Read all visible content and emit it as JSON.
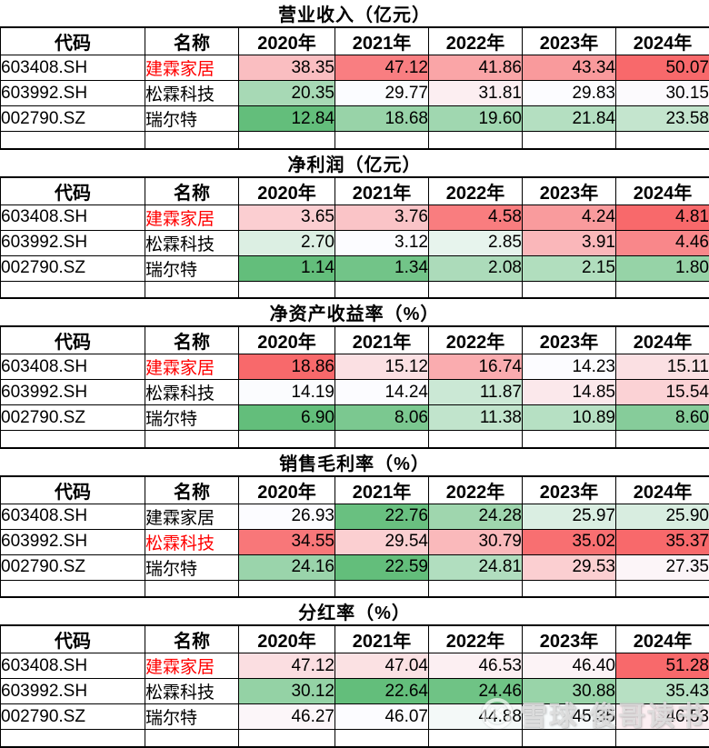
{
  "columns": [
    "代码",
    "名称",
    "2020年",
    "2021年",
    "2022年",
    "2023年",
    "2024年"
  ],
  "heatmap": {
    "min_color": "#63BE7B",
    "mid_color": "#FCFCFF",
    "max_color": "#F8696B",
    "midpoint": "50th percentile per table"
  },
  "name_highlight_color": "#FF0000",
  "border_color": "#000000",
  "chart_data": [
    {
      "type": "table",
      "title": "营业收入（亿元）",
      "rows": [
        {
          "code": "603408.SH",
          "name": "建霖家居",
          "highlight": true,
          "values": [
            "38.35",
            "47.12",
            "41.86",
            "43.34",
            "50.07"
          ]
        },
        {
          "code": "603992.SH",
          "name": "松霖科技",
          "highlight": false,
          "values": [
            "20.35",
            "29.77",
            "31.81",
            "29.83",
            "30.15"
          ]
        },
        {
          "code": "002790.SZ",
          "name": "瑞尔特",
          "highlight": false,
          "values": [
            "12.84",
            "18.68",
            "19.60",
            "21.84",
            "23.58"
          ]
        }
      ]
    },
    {
      "type": "table",
      "title": "净利润（亿元）",
      "rows": [
        {
          "code": "603408.SH",
          "name": "建霖家居",
          "highlight": true,
          "values": [
            "3.65",
            "3.76",
            "4.58",
            "4.24",
            "4.81"
          ]
        },
        {
          "code": "603992.SH",
          "name": "松霖科技",
          "highlight": false,
          "values": [
            "2.70",
            "3.12",
            "2.85",
            "3.91",
            "4.46"
          ]
        },
        {
          "code": "002790.SZ",
          "name": "瑞尔特",
          "highlight": false,
          "values": [
            "1.14",
            "1.34",
            "2.08",
            "2.15",
            "1.80"
          ]
        }
      ]
    },
    {
      "type": "table",
      "title": "净资产收益率（%）",
      "rows": [
        {
          "code": "603408.SH",
          "name": "建霖家居",
          "highlight": true,
          "values": [
            "18.86",
            "15.12",
            "16.74",
            "14.23",
            "15.11"
          ]
        },
        {
          "code": "603992.SH",
          "name": "松霖科技",
          "highlight": false,
          "values": [
            "14.19",
            "14.24",
            "11.87",
            "14.85",
            "15.54"
          ]
        },
        {
          "code": "002790.SZ",
          "name": "瑞尔特",
          "highlight": false,
          "values": [
            "6.90",
            "8.06",
            "11.38",
            "10.89",
            "8.60"
          ]
        }
      ]
    },
    {
      "type": "table",
      "title": "销售毛利率（%）",
      "rows": [
        {
          "code": "603408.SH",
          "name": "建霖家居",
          "highlight": false,
          "values": [
            "26.93",
            "22.76",
            "24.28",
            "25.97",
            "25.90"
          ]
        },
        {
          "code": "603992.SH",
          "name": "松霖科技",
          "highlight": true,
          "values": [
            "34.55",
            "29.54",
            "30.79",
            "35.02",
            "35.37"
          ]
        },
        {
          "code": "002790.SZ",
          "name": "瑞尔特",
          "highlight": false,
          "values": [
            "24.16",
            "22.59",
            "24.81",
            "29.53",
            "27.35"
          ]
        }
      ]
    },
    {
      "type": "table",
      "title": "分红率（%）",
      "rows": [
        {
          "code": "603408.SH",
          "name": "建霖家居",
          "highlight": true,
          "values": [
            "47.12",
            "47.04",
            "46.53",
            "46.40",
            "51.28"
          ]
        },
        {
          "code": "603992.SH",
          "name": "松霖科技",
          "highlight": false,
          "values": [
            "30.12",
            "22.64",
            "24.46",
            "30.88",
            "35.43"
          ]
        },
        {
          "code": "002790.SZ",
          "name": "瑞尔特",
          "highlight": false,
          "values": [
            "46.27",
            "46.07",
            "44.88",
            "45.35",
            "46.53"
          ]
        }
      ]
    }
  ],
  "watermark": {
    "text": "雪球·俊哥读书",
    "logo": "xueqiu-logo"
  }
}
